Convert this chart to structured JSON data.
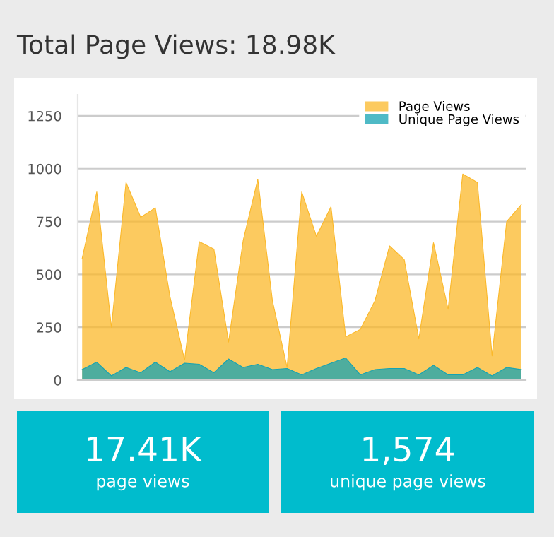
{
  "chart_data": [
    {
      "type": "area",
      "title": "Total Page Views: 18.98K",
      "categories": [
        null,
        null,
        null,
        null,
        null,
        null,
        null,
        null,
        null,
        null,
        null,
        null,
        null,
        null,
        null,
        null,
        null,
        null,
        null,
        null,
        null,
        null,
        null,
        null,
        null,
        null,
        null,
        null,
        null,
        null,
        null
      ],
      "series": [
        {
          "name": "Page Views",
          "color": "#fbb829",
          "values": [
            575,
            890,
            250,
            935,
            770,
            815,
            395,
            95,
            655,
            620,
            180,
            660,
            950,
            375,
            60,
            890,
            680,
            820,
            205,
            240,
            375,
            635,
            570,
            195,
            650,
            335,
            975,
            935,
            115,
            750,
            830
          ]
        },
        {
          "name": "Unique Page Views",
          "color": "#14a3b3",
          "values": [
            50,
            85,
            20,
            60,
            35,
            85,
            40,
            80,
            75,
            35,
            100,
            60,
            75,
            50,
            55,
            25,
            55,
            80,
            105,
            25,
            50,
            55,
            55,
            25,
            70,
            25,
            25,
            60,
            20,
            60,
            50
          ]
        }
      ],
      "ylim": [
        0,
        1350
      ],
      "yticks": [
        0,
        250,
        500,
        750,
        1000,
        1250
      ],
      "grid": "y",
      "legend": "top right"
    },
    {
      "type": "other",
      "title": "17.41K",
      "subtitle": "page views"
    },
    {
      "type": "other",
      "title": "1,574",
      "subtitle": "unique page views"
    }
  ]
}
